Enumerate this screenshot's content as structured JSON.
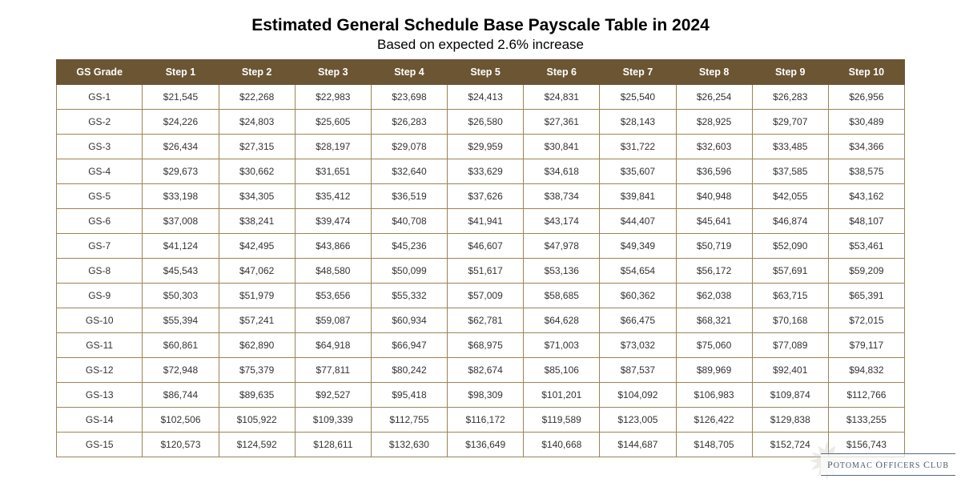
{
  "title": "Estimated General Schedule Base Payscale Table in 2024",
  "subtitle": "Based on expected 2.6% increase",
  "headers": [
    "GS Grade",
    "Step 1",
    "Step 2",
    "Step 3",
    "Step 4",
    "Step 5",
    "Step 6",
    "Step 7",
    "Step 8",
    "Step 9",
    "Step 10"
  ],
  "rows": [
    [
      "GS-1",
      "$21,545",
      "$22,268",
      "$22,983",
      "$23,698",
      "$24,413",
      "$24,831",
      "$25,540",
      "$26,254",
      "$26,283",
      "$26,956"
    ],
    [
      "GS-2",
      "$24,226",
      "$24,803",
      "$25,605",
      "$26,283",
      "$26,580",
      "$27,361",
      "$28,143",
      "$28,925",
      "$29,707",
      "$30,489"
    ],
    [
      "GS-3",
      "$26,434",
      "$27,315",
      "$28,197",
      "$29,078",
      "$29,959",
      "$30,841",
      "$31,722",
      "$32,603",
      "$33,485",
      "$34,366"
    ],
    [
      "GS-4",
      "$29,673",
      "$30,662",
      "$31,651",
      "$32,640",
      "$33,629",
      "$34,618",
      "$35,607",
      "$36,596",
      "$37,585",
      "$38,575"
    ],
    [
      "GS-5",
      "$33,198",
      "$34,305",
      "$35,412",
      "$36,519",
      "$37,626",
      "$38,734",
      "$39,841",
      "$40,948",
      "$42,055",
      "$43,162"
    ],
    [
      "GS-6",
      "$37,008",
      "$38,241",
      "$39,474",
      "$40,708",
      "$41,941",
      "$43,174",
      "$44,407",
      "$45,641",
      "$46,874",
      "$48,107"
    ],
    [
      "GS-7",
      "$41,124",
      "$42,495",
      "$43,866",
      "$45,236",
      "$46,607",
      "$47,978",
      "$49,349",
      "$50,719",
      "$52,090",
      "$53,461"
    ],
    [
      "GS-8",
      "$45,543",
      "$47,062",
      "$48,580",
      "$50,099",
      "$51,617",
      "$53,136",
      "$54,654",
      "$56,172",
      "$57,691",
      "$59,209"
    ],
    [
      "GS-9",
      "$50,303",
      "$51,979",
      "$53,656",
      "$55,332",
      "$57,009",
      "$58,685",
      "$60,362",
      "$62,038",
      "$63,715",
      "$65,391"
    ],
    [
      "GS-10",
      "$55,394",
      "$57,241",
      "$59,087",
      "$60,934",
      "$62,781",
      "$64,628",
      "$66,475",
      "$68,321",
      "$70,168",
      "$72,015"
    ],
    [
      "GS-11",
      "$60,861",
      "$62,890",
      "$64,918",
      "$66,947",
      "$68,975",
      "$71,003",
      "$73,032",
      "$75,060",
      "$77,089",
      "$79,117"
    ],
    [
      "GS-12",
      "$72,948",
      "$75,379",
      "$77,811",
      "$80,242",
      "$82,674",
      "$85,106",
      "$87,537",
      "$89,969",
      "$92,401",
      "$94,832"
    ],
    [
      "GS-13",
      "$86,744",
      "$89,635",
      "$92,527",
      "$95,418",
      "$98,309",
      "$101,201",
      "$104,092",
      "$106,983",
      "$109,874",
      "$112,766"
    ],
    [
      "GS-14",
      "$102,506",
      "$105,922",
      "$109,339",
      "$112,755",
      "$116,172",
      "$119,589",
      "$123,005",
      "$126,422",
      "$129,838",
      "$133,255"
    ],
    [
      "GS-15",
      "$120,573",
      "$124,592",
      "$128,611",
      "$132,630",
      "$136,649",
      "$140,668",
      "$144,687",
      "$148,705",
      "$152,724",
      "$156,743"
    ]
  ],
  "logo": {
    "text_main": "P",
    "text_rest1": "OTOMAC ",
    "text_main2": "O",
    "text_rest2": "FFICERS ",
    "text_main3": "C",
    "text_rest3": "LUB"
  },
  "colors": {
    "header_bg": "#6b5533",
    "header_text": "#ffffff",
    "cell_border": "#9c8354",
    "cell_text": "#333333",
    "background": "#ffffff"
  }
}
